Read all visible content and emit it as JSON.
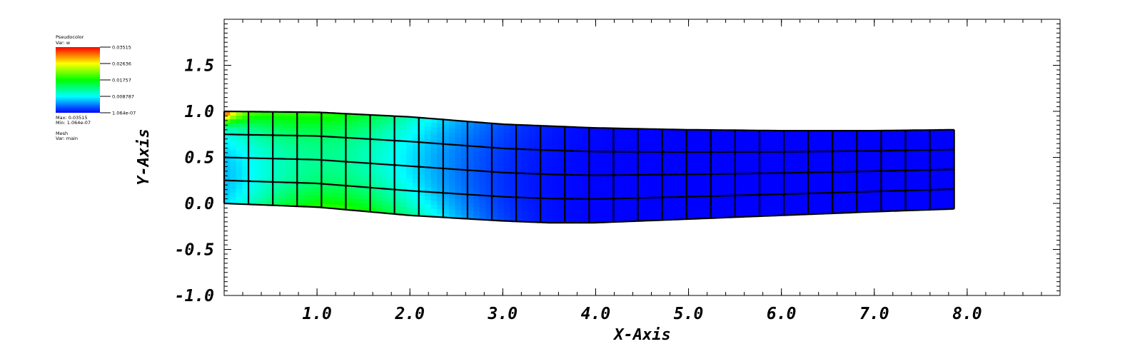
{
  "chart_data": {
    "type": "heatmap",
    "plot": "Pseudocolor + Mesh (deformed beam)",
    "xlabel": "X-Axis",
    "ylabel": "Y-Axis",
    "xlim": [
      0,
      9.0
    ],
    "ylim": [
      -1.0,
      2.0
    ],
    "x_tick_labels": [
      "1.0",
      "2.0",
      "3.0",
      "4.0",
      "5.0",
      "6.0",
      "7.0",
      "8.0"
    ],
    "x_tick_values": [
      1.0,
      2.0,
      3.0,
      4.0,
      5.0,
      6.0,
      7.0,
      8.0
    ],
    "y_tick_labels": [
      "-1.0",
      "-0.5",
      "0.0",
      "0.5",
      "1.0",
      "1.5"
    ],
    "y_tick_values": [
      -1.0,
      -0.5,
      0.0,
      0.5,
      1.0,
      1.5
    ],
    "mesh": {
      "cols": 30,
      "rows": 4,
      "x_range": [
        0.0,
        7.86
      ],
      "bottom_profile": [
        [
          0,
          0.0
        ],
        [
          1,
          -0.04
        ],
        [
          2,
          -0.13
        ],
        [
          3,
          -0.19
        ],
        [
          3.5,
          -0.21
        ],
        [
          4,
          -0.21
        ],
        [
          4.5,
          -0.19
        ],
        [
          5,
          -0.17
        ],
        [
          6,
          -0.13
        ],
        [
          7,
          -0.09
        ],
        [
          7.86,
          -0.06
        ]
      ],
      "top_profile": [
        [
          0,
          1.0
        ],
        [
          1,
          0.99
        ],
        [
          2,
          0.94
        ],
        [
          3,
          0.86
        ],
        [
          4,
          0.82
        ],
        [
          5,
          0.8
        ],
        [
          6,
          0.79
        ],
        [
          7,
          0.79
        ],
        [
          7.86,
          0.8
        ]
      ]
    },
    "legend": {
      "plot_name": "Pseudocolor",
      "var_label": "Var: w",
      "colormap": [
        "#ff0000",
        "#ffff00",
        "#00ff00",
        "#00ffff",
        "#0000ff"
      ],
      "tick_labels": [
        "0.03515",
        "0.02636",
        "0.01757",
        "0.008787",
        "1.064e-07"
      ],
      "max_label": "Max: 0.03515",
      "min_label": "Min: 1.064e-07",
      "mesh_label": "Mesh",
      "mesh_var_label": "Var: main"
    },
    "grid": false
  }
}
